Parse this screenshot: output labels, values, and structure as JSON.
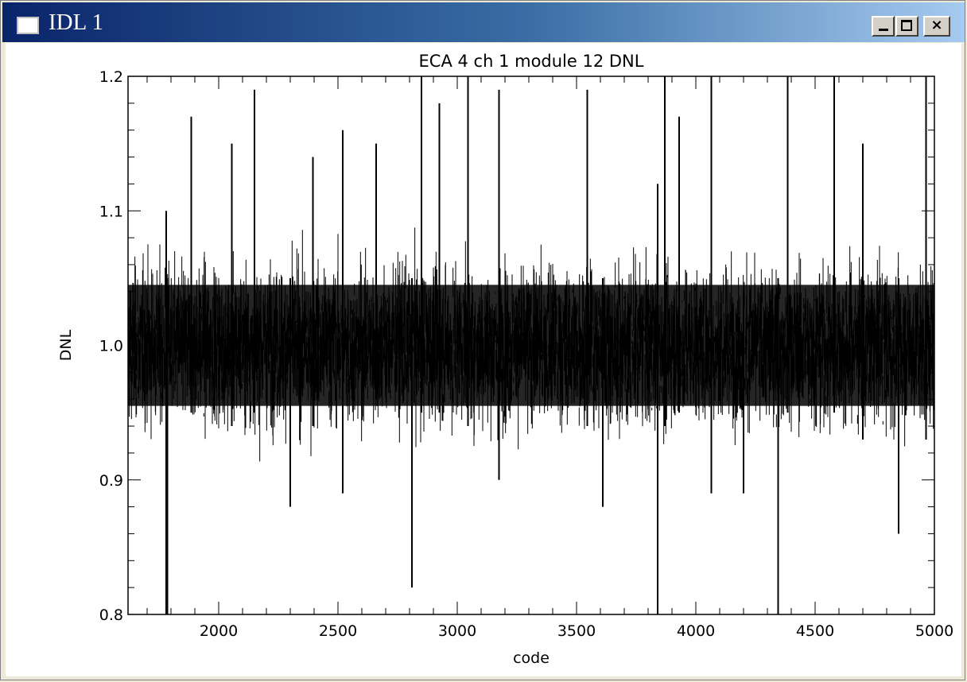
{
  "window": {
    "title": "IDL 1",
    "minimize_glyph": "",
    "maximize_glyph": "",
    "close_glyph": "×"
  },
  "chart_data": {
    "type": "line",
    "title": "ECA 4 ch 1 module 12 DNL",
    "xlabel": "code",
    "ylabel": "DNL",
    "xlim": [
      1620,
      5000
    ],
    "ylim": [
      0.8,
      1.2
    ],
    "x_ticks": [
      2000,
      2500,
      3000,
      3500,
      4000,
      4500,
      5000
    ],
    "x_tick_labels": [
      "2000",
      "2500",
      "3000",
      "3500",
      "4000",
      "4500",
      "5000"
    ],
    "y_ticks": [
      0.8,
      0.9,
      1.0,
      1.1,
      1.2
    ],
    "y_tick_labels": [
      "0.8",
      "0.9",
      "1.0",
      "1.1",
      "1.2"
    ],
    "series": [
      {
        "color": "#000000",
        "band": {
          "center": 1.0,
          "dense_low": 0.955,
          "dense_high": 1.045,
          "typical_low": 0.93,
          "typical_high": 1.07
        },
        "spikes": [
          {
            "x": 1780,
            "low": 0.8,
            "high": 1.1
          },
          {
            "x": 1785,
            "low": 0.8,
            "high": 1.05
          },
          {
            "x": 1885,
            "low": 0.95,
            "high": 1.17
          },
          {
            "x": 2055,
            "low": 0.94,
            "high": 1.15
          },
          {
            "x": 2150,
            "low": 0.95,
            "high": 1.19
          },
          {
            "x": 2300,
            "low": 0.88,
            "high": 1.05
          },
          {
            "x": 2395,
            "low": 0.94,
            "high": 1.14
          },
          {
            "x": 2520,
            "low": 0.89,
            "high": 1.16
          },
          {
            "x": 2660,
            "low": 0.96,
            "high": 1.15
          },
          {
            "x": 2810,
            "low": 0.82,
            "high": 1.05
          },
          {
            "x": 2850,
            "low": 0.95,
            "high": 1.2
          },
          {
            "x": 2925,
            "low": 0.95,
            "high": 1.18
          },
          {
            "x": 3045,
            "low": 0.94,
            "high": 1.2
          },
          {
            "x": 3175,
            "low": 0.9,
            "high": 1.19
          },
          {
            "x": 3545,
            "low": 0.94,
            "high": 1.19
          },
          {
            "x": 3610,
            "low": 0.88,
            "high": 1.05
          },
          {
            "x": 3840,
            "low": 0.8,
            "high": 1.12
          },
          {
            "x": 3870,
            "low": 0.94,
            "high": 1.2
          },
          {
            "x": 3930,
            "low": 0.95,
            "high": 1.17
          },
          {
            "x": 4065,
            "low": 0.89,
            "high": 1.2
          },
          {
            "x": 4200,
            "low": 0.89,
            "high": 1.04
          },
          {
            "x": 4345,
            "low": 0.8,
            "high": 1.05
          },
          {
            "x": 4385,
            "low": 0.95,
            "high": 1.2
          },
          {
            "x": 4580,
            "low": 0.95,
            "high": 1.2
          },
          {
            "x": 4700,
            "low": 0.93,
            "high": 1.15
          },
          {
            "x": 4850,
            "low": 0.86,
            "high": 1.05
          },
          {
            "x": 4965,
            "low": 0.93,
            "high": 1.2
          }
        ]
      }
    ]
  }
}
